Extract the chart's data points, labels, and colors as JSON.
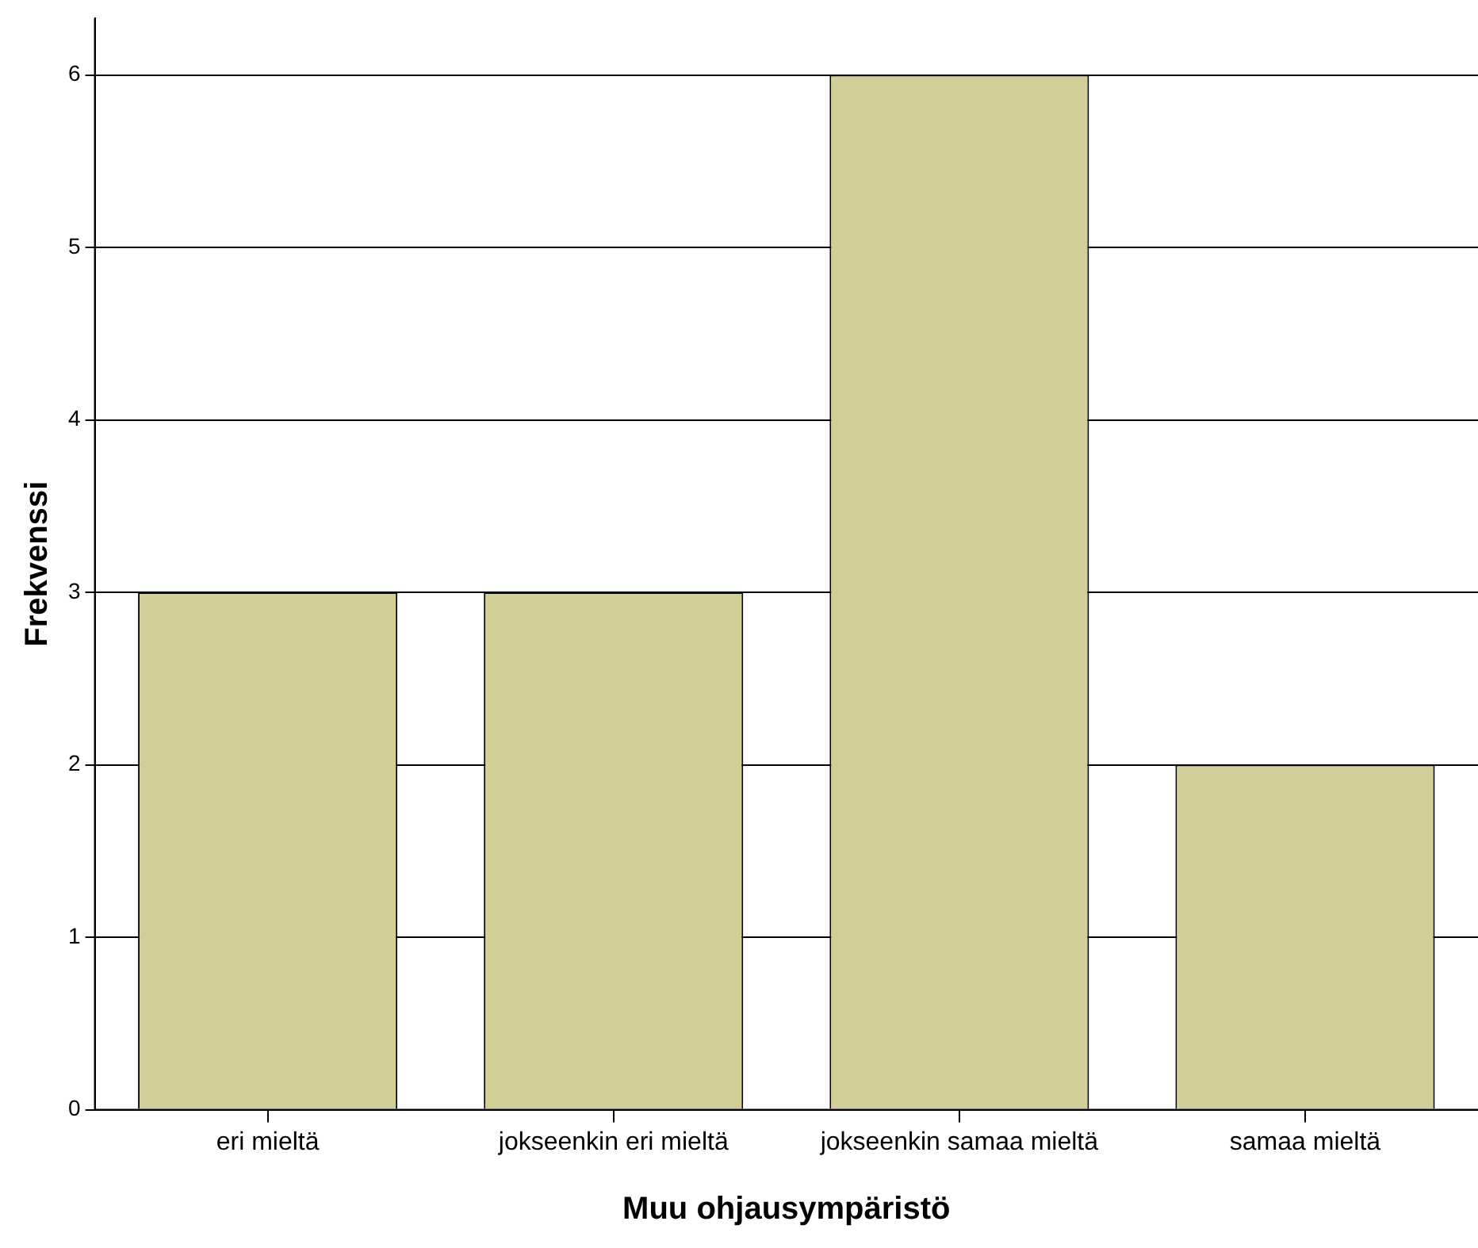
{
  "chart_data": {
    "type": "bar",
    "xlabel": "Muu ohjausympäristö",
    "ylabel": "Frekvenssi",
    "categories": [
      "eri mieltä",
      "jokseenkin eri mieltä",
      "jokseenkin samaa mieltä",
      "samaa mieltä"
    ],
    "values": [
      3,
      3,
      6,
      2
    ],
    "color": "#d3ce97",
    "ylim": [
      0,
      6.33
    ],
    "yticks": [
      0,
      1,
      2,
      3,
      4,
      5,
      6
    ],
    "grid": "y",
    "legend": false
  }
}
